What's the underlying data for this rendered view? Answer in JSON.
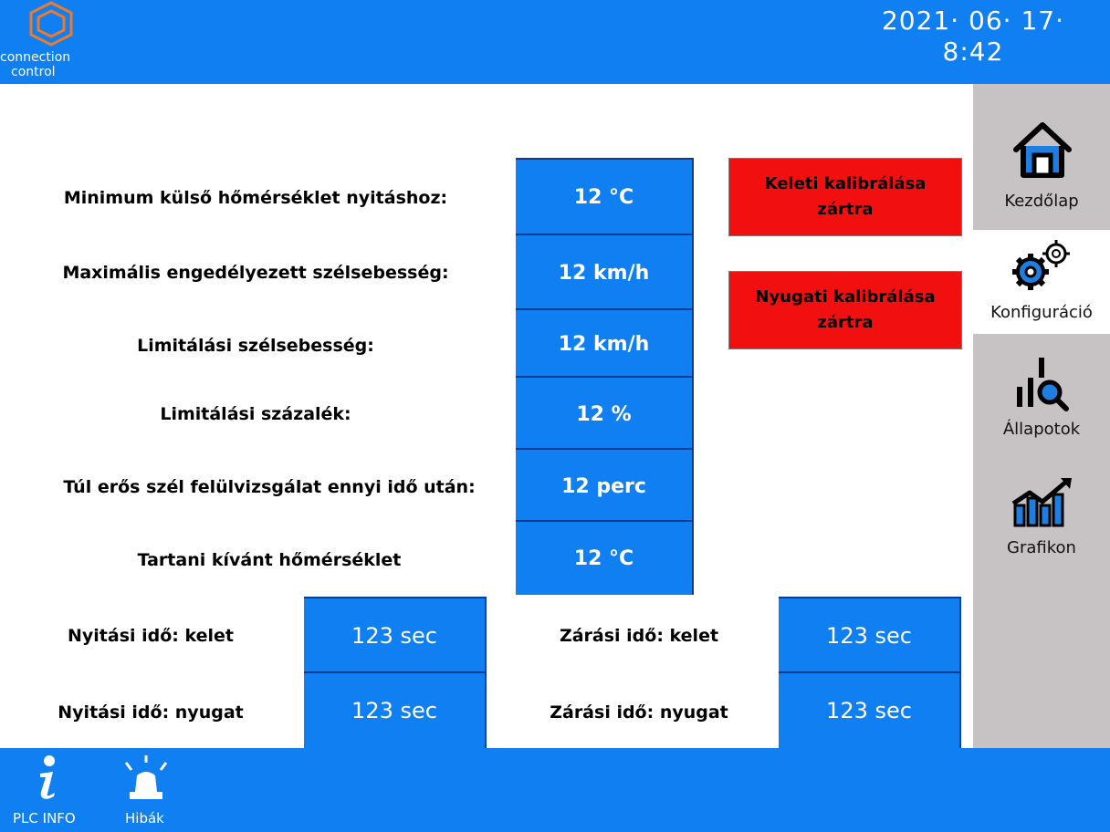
{
  "header": {
    "logo_line1": "connection",
    "logo_line2": "control",
    "date": "2021· 06· 17·",
    "time": "8:42"
  },
  "settings": [
    {
      "label": "Minimum külső hőmérséklet nyitáshoz:",
      "value": "12 °C"
    },
    {
      "label": "Maximális engedélyezett szélsebesség:",
      "value": "12 km/h"
    },
    {
      "label": "Limitálási szélsebesség:",
      "value": "12 km/h"
    },
    {
      "label": "Limitálási százalék:",
      "value": "12 %"
    },
    {
      "label": "Túl erős szél felülvizsgálat ennyi idő után:",
      "value": "12 perc"
    },
    {
      "label": "Tartani kívánt hőmérséklet",
      "value": "12 °C"
    }
  ],
  "timing": {
    "open_east_label": "Nyitási idő: kelet",
    "open_east_value": "123 sec",
    "close_east_label": "Zárási idő: kelet",
    "close_east_value": "123 sec",
    "open_west_label": "Nyitási idő: nyugat",
    "open_west_value": "123 sec",
    "close_west_label": "Zárási idő: nyugat",
    "close_west_value": "123 sec"
  },
  "calibration": {
    "east_line1": "Keleti kalibrálása",
    "east_line2": "zártra",
    "west_line1": "Nyugati kalibrálása",
    "west_line2": "zártra",
    "alarm_color": "#f20f0f"
  },
  "nav": [
    {
      "label": "Kezdőlap",
      "icon": "home-icon"
    },
    {
      "label": "Konfiguráció",
      "icon": "gears-icon",
      "active": true
    },
    {
      "label": "Állapotok",
      "icon": "status-search-icon"
    },
    {
      "label": "Grafikon",
      "icon": "chart-icon"
    }
  ],
  "footer": {
    "plc_info_label": "PLC INFO",
    "errors_label": "Hibák"
  },
  "colors": {
    "accent_blue": "#0f7ff2",
    "nav_gray": "#c7c3c5"
  }
}
